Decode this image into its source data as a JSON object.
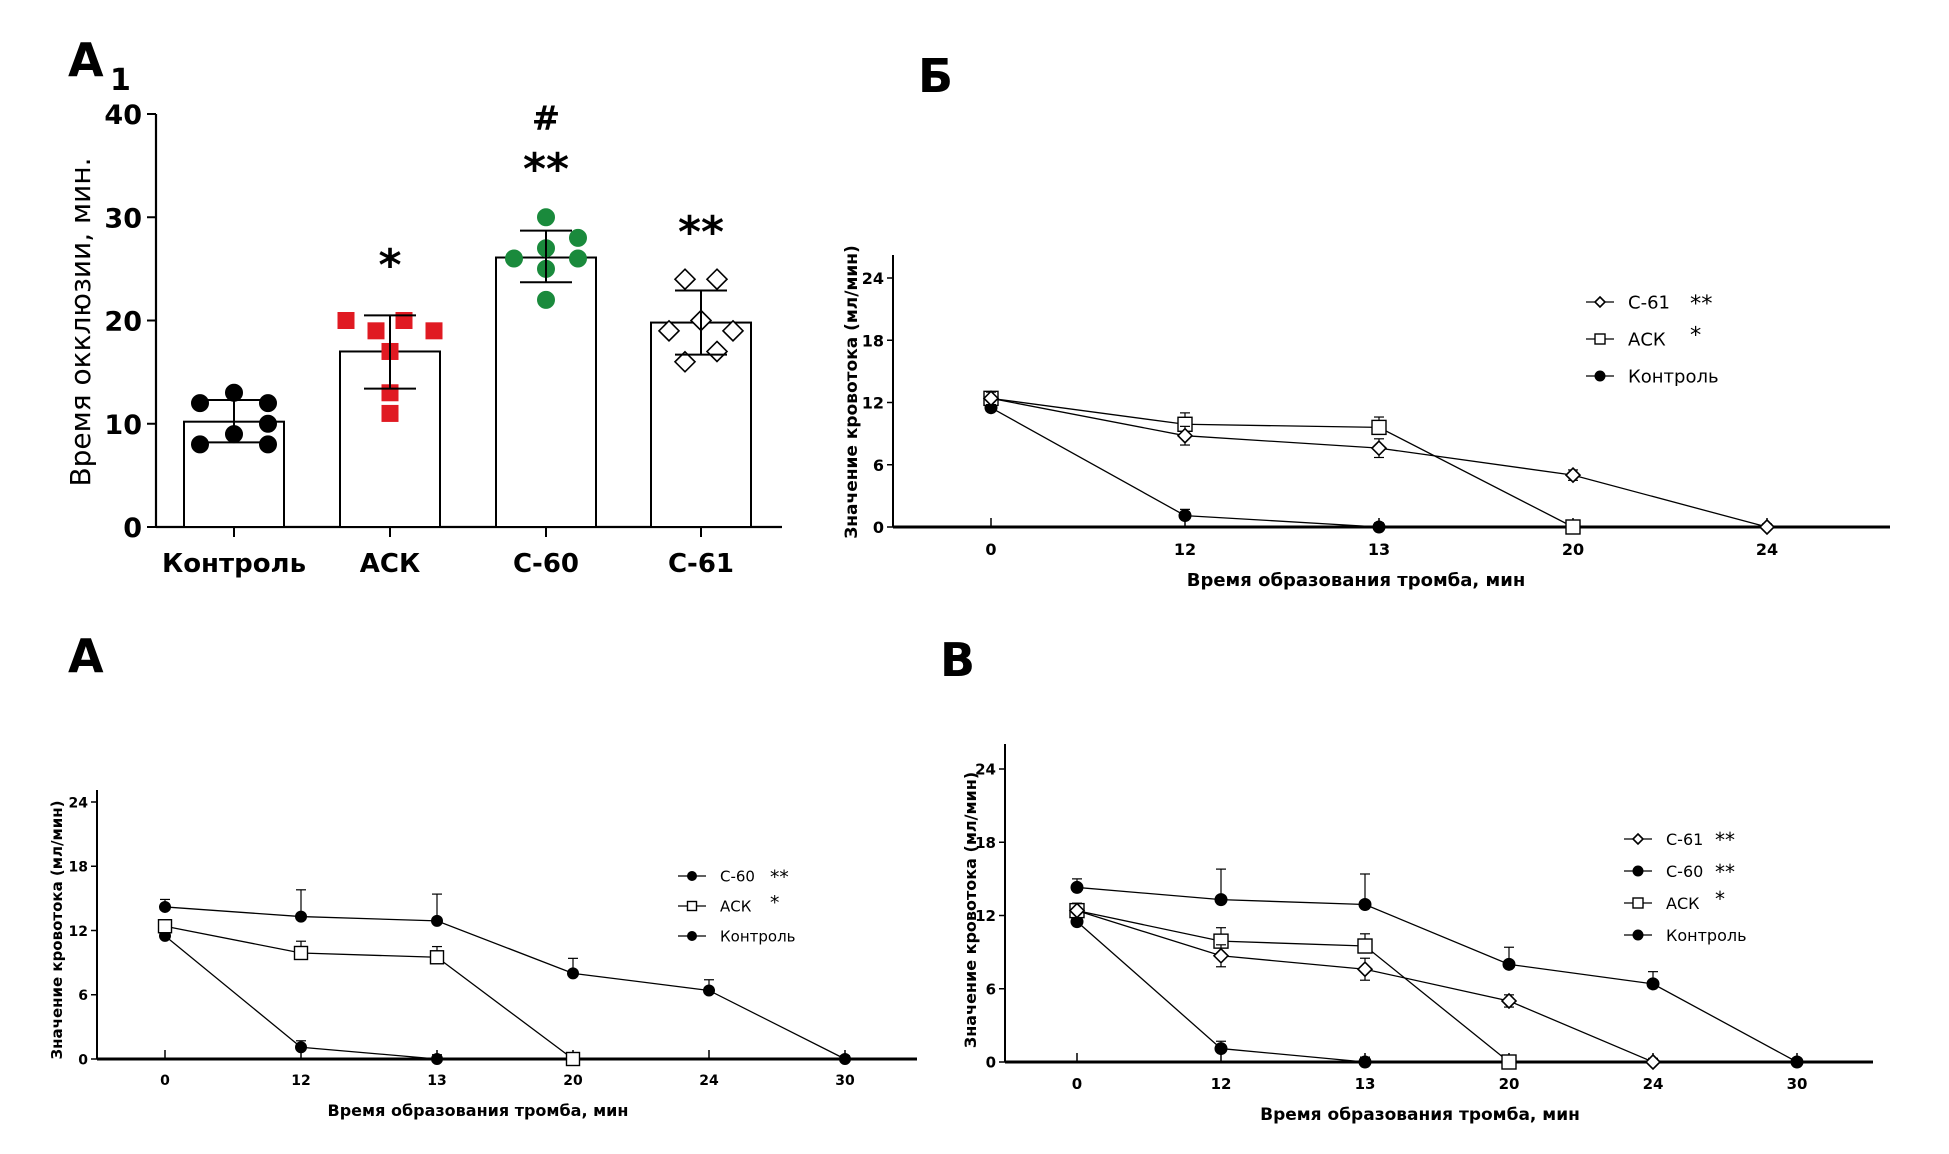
{
  "chart_data": [
    {
      "id": "A1",
      "type": "bar",
      "panel_label": "А",
      "panel_subscript": "1",
      "title": "",
      "xlabel": "",
      "ylabel": "Время окклюзии, мин.",
      "ylim": [
        0,
        40
      ],
      "yticks": [
        0,
        10,
        20,
        30,
        40
      ],
      "categories": [
        "Контроль",
        "АСК",
        "С-60",
        "С-61"
      ],
      "values": [
        10.2,
        17.0,
        26.1,
        19.8
      ],
      "error_low": [
        8.2,
        13.4,
        23.7,
        16.7
      ],
      "error_high": [
        12.3,
        20.5,
        28.7,
        22.9
      ],
      "points": [
        [
          13,
          12,
          12,
          10,
          9,
          8,
          8
        ],
        [
          20,
          20,
          19,
          19,
          17,
          13,
          11
        ],
        [
          30,
          28,
          27,
          26,
          26,
          25,
          22
        ],
        [
          24,
          24,
          20,
          19,
          19,
          17,
          16
        ]
      ],
      "point_markers": [
        "circle",
        "square",
        "circle",
        "diamond-open"
      ],
      "point_colors": [
        "#000000",
        "#e01a22",
        "#1a8a3c",
        "#000000"
      ],
      "significance": [
        "",
        "*",
        "**",
        "**"
      ],
      "significance_extra": [
        "",
        "",
        "#",
        ""
      ],
      "grid": false
    },
    {
      "id": "B_cyr",
      "type": "line",
      "panel_label": "Б",
      "xlabel": "Время образования тромба, мин",
      "ylabel": "Значение кровотока (мл/мин)",
      "ylim": [
        0,
        26
      ],
      "yticks": [
        0,
        6,
        12,
        18,
        24
      ],
      "x": [
        "0",
        "12",
        "13",
        "20",
        "24"
      ],
      "legend_position": "top-right",
      "series": [
        {
          "name": "С-61",
          "sig": "**",
          "marker": "diamond-open",
          "values": [
            12.4,
            8.8,
            7.6,
            5.0,
            0
          ],
          "err": [
            0.6,
            0.9,
            0.9,
            0.5,
            0.3
          ]
        },
        {
          "name": "АСК",
          "sig": "*",
          "marker": "square-open",
          "values": [
            12.4,
            9.9,
            9.6,
            0,
            null
          ],
          "err": [
            0.6,
            1.1,
            1.0,
            0.4,
            null
          ]
        },
        {
          "name": "Контроль",
          "sig": "",
          "marker": "circle",
          "values": [
            11.5,
            1.1,
            0,
            null,
            null
          ],
          "err": [
            0.5,
            0.6,
            0.4,
            null,
            null
          ]
        }
      ],
      "grid": false
    },
    {
      "id": "A",
      "type": "line",
      "panel_label": "А",
      "xlabel": "Время образования тромба, мин",
      "ylabel": "Значение кровотока (мл/мин)",
      "ylim": [
        0,
        26
      ],
      "yticks": [
        0,
        6,
        12,
        18,
        24
      ],
      "x": [
        "0",
        "12",
        "13",
        "20",
        "24",
        "30"
      ],
      "legend_position": "top-right",
      "series": [
        {
          "name": "С-60",
          "sig": "**",
          "marker": "circle",
          "values": [
            14.2,
            13.3,
            12.9,
            8.0,
            6.4,
            0
          ],
          "err": [
            0.7,
            2.5,
            2.5,
            1.4,
            1.0,
            0.3
          ]
        },
        {
          "name": "АСК",
          "sig": "*",
          "marker": "square-open",
          "values": [
            12.4,
            9.9,
            9.5,
            0,
            null,
            null
          ],
          "err": [
            0.6,
            1.1,
            1.0,
            0.4,
            null,
            null
          ]
        },
        {
          "name": "Контроль",
          "sig": "",
          "marker": "circle",
          "values": [
            11.5,
            1.1,
            0,
            null,
            null,
            null
          ],
          "err": [
            0.5,
            0.6,
            0.4,
            null,
            null,
            null
          ]
        }
      ],
      "grid": false
    },
    {
      "id": "V",
      "type": "line",
      "panel_label": "В",
      "xlabel": "Время образования тромба, мин",
      "ylabel": "Значение кровотока (мл/мин)",
      "ylim": [
        0,
        26
      ],
      "yticks": [
        0,
        6,
        12,
        18,
        24
      ],
      "x": [
        "0",
        "12",
        "13",
        "20",
        "24",
        "30"
      ],
      "legend_position": "top-right",
      "series": [
        {
          "name": "С-61",
          "sig": "**",
          "marker": "diamond-open",
          "values": [
            12.4,
            8.7,
            7.6,
            5.0,
            0,
            null
          ],
          "err": [
            0.6,
            0.9,
            0.9,
            0.5,
            0.3,
            null
          ]
        },
        {
          "name": "С-60",
          "sig": "**",
          "marker": "circle",
          "values": [
            14.3,
            13.3,
            12.9,
            8.0,
            6.4,
            0
          ],
          "err": [
            0.7,
            2.5,
            2.5,
            1.4,
            1.0,
            0.3
          ]
        },
        {
          "name": "АСК",
          "sig": "*",
          "marker": "square-open",
          "values": [
            12.4,
            9.9,
            9.5,
            0,
            null,
            null
          ],
          "err": [
            0.6,
            1.1,
            1.0,
            0.4,
            null,
            null
          ]
        },
        {
          "name": "Контроль",
          "sig": "",
          "marker": "circle",
          "values": [
            11.5,
            1.1,
            0,
            null,
            null,
            null
          ],
          "err": [
            0.5,
            0.6,
            0.4,
            null,
            null,
            null
          ]
        }
      ],
      "grid": false
    }
  ]
}
